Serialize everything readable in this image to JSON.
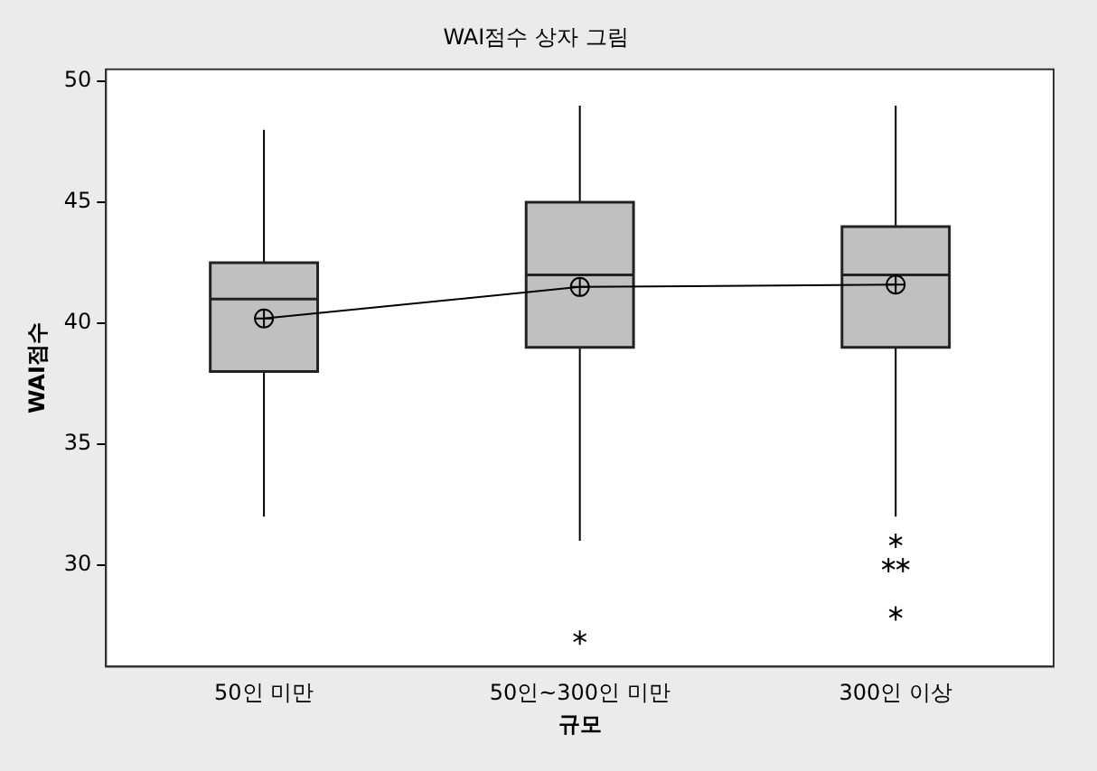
{
  "chart_data": {
    "type": "box",
    "title": "WAI점수 상자 그림",
    "xlabel": "규모",
    "ylabel": "WAI점수",
    "categories": [
      "50인 미만",
      "50인~300인 미만",
      "300인 이상"
    ],
    "color": "#c0c0c0",
    "boxes": [
      {
        "low": 32,
        "q1": 38,
        "median": 41,
        "q3": 42.5,
        "high": 48
      },
      {
        "low": 31,
        "q1": 39,
        "median": 42,
        "q3": 45,
        "high": 49,
        "outliers": [
          27
        ]
      },
      {
        "low": 32,
        "q1": 39,
        "median": 42,
        "q3": 44,
        "high": 49,
        "outliers": [
          31,
          30,
          30,
          28
        ]
      }
    ],
    "series": [
      {
        "type": "line",
        "color": "#000000",
        "values": [
          40.2,
          41.5,
          41.6
        ]
      }
    ],
    "marker": "circle",
    "ylim": [
      25.8,
      50.5
    ],
    "yticks": [
      30,
      35,
      40,
      45,
      50
    ],
    "grid": false,
    "legend": false
  }
}
